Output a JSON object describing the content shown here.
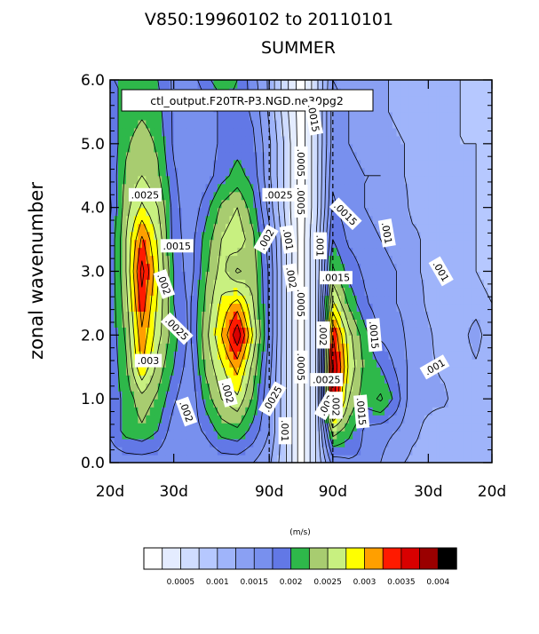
{
  "title": "V850:19960102 to 20110101",
  "subtitle": "SUMMER",
  "case_label": "ctl_output.F20TR-P3.NGD.ne30pg2",
  "units": "(m/s)",
  "chart_data": {
    "type": "heatmap",
    "title": "V850:19960102 to 20110101",
    "subtitle": "SUMMER",
    "ylabel": "zonal wavenumber",
    "xlabel": "",
    "ylim": [
      0,
      6
    ],
    "y_ticks": [
      "0.0",
      "1.0",
      "2.0",
      "3.0",
      "4.0",
      "5.0",
      "6.0"
    ],
    "x_tick_labels": [
      "20d",
      "30d",
      "90d",
      "90d",
      "30d",
      "20d"
    ],
    "x": [
      -6,
      -5.5,
      -5,
      -4.5,
      -4,
      -3.5,
      -3,
      -2.5,
      -2,
      -1.5,
      -1,
      -0.5,
      0,
      0.5,
      1,
      1.5,
      2,
      2.5,
      3,
      3.5,
      4,
      4.5,
      5,
      5.5,
      6
    ],
    "y": [
      0,
      0.5,
      1,
      1.5,
      2,
      2.5,
      3,
      3.5,
      4,
      4.5,
      5,
      5.5,
      6
    ],
    "z": [
      [
        0.0016,
        0.0016,
        0.0016,
        0.0016,
        0.0015,
        0.0015,
        0.0015,
        0.0016,
        0.0016,
        0.0015,
        0.0013,
        0.0008,
        0.0001,
        0.0008,
        0.0016,
        0.0017,
        0.0017,
        0.0015,
        0.0013,
        0.0012,
        0.0012,
        0.0011,
        0.0011,
        0.0011,
        0.0011
      ],
      [
        0.0018,
        0.0021,
        0.0022,
        0.002,
        0.0016,
        0.0016,
        0.0018,
        0.0021,
        0.0022,
        0.0019,
        0.0015,
        0.0008,
        0.0001,
        0.0008,
        0.0024,
        0.0021,
        0.0017,
        0.0016,
        0.0015,
        0.0013,
        0.0012,
        0.0011,
        0.0011,
        0.001,
        0.001
      ],
      [
        0.0018,
        0.0021,
        0.0024,
        0.0022,
        0.0018,
        0.0015,
        0.0021,
        0.0025,
        0.0027,
        0.0022,
        0.0015,
        0.0008,
        0.0001,
        0.0008,
        0.0036,
        0.0025,
        0.0021,
        0.0023,
        0.0019,
        0.0013,
        0.0013,
        0.0013,
        0.0011,
        0.001,
        0.001
      ],
      [
        0.0018,
        0.0022,
        0.003,
        0.0024,
        0.002,
        0.0016,
        0.0023,
        0.0027,
        0.0031,
        0.0024,
        0.0016,
        0.0008,
        0.0001,
        0.0008,
        0.0038,
        0.0027,
        0.0022,
        0.002,
        0.0017,
        0.0014,
        0.0013,
        0.0012,
        0.0011,
        0.0012,
        0.001
      ],
      [
        0.0018,
        0.0023,
        0.0032,
        0.0026,
        0.0021,
        0.0017,
        0.0024,
        0.003,
        0.0037,
        0.0027,
        0.0017,
        0.0008,
        0.0001,
        0.0008,
        0.0035,
        0.0026,
        0.0021,
        0.0017,
        0.0016,
        0.0014,
        0.0013,
        0.0011,
        0.0011,
        0.0014,
        0.001
      ],
      [
        0.0018,
        0.0024,
        0.0034,
        0.0027,
        0.002,
        0.0017,
        0.0023,
        0.0028,
        0.0031,
        0.0025,
        0.0017,
        0.0008,
        0.0001,
        0.0008,
        0.0028,
        0.0022,
        0.0018,
        0.0016,
        0.0015,
        0.0014,
        0.0012,
        0.0011,
        0.0011,
        0.0011,
        0.001
      ],
      [
        0.0018,
        0.0025,
        0.0036,
        0.0028,
        0.002,
        0.0016,
        0.0022,
        0.0026,
        0.0022,
        0.0024,
        0.0017,
        0.0008,
        0.0001,
        0.0008,
        0.0023,
        0.0019,
        0.0017,
        0.0016,
        0.0015,
        0.0013,
        0.0012,
        0.0011,
        0.001,
        0.001,
        0.0009
      ],
      [
        0.0018,
        0.0025,
        0.0033,
        0.0027,
        0.0019,
        0.0016,
        0.0021,
        0.0025,
        0.0027,
        0.0023,
        0.0016,
        0.0008,
        0.0001,
        0.0008,
        0.002,
        0.0017,
        0.0016,
        0.0015,
        0.0014,
        0.0013,
        0.0012,
        0.0011,
        0.001,
        0.001,
        0.0009
      ],
      [
        0.0017,
        0.0024,
        0.0028,
        0.0025,
        0.0019,
        0.0015,
        0.0019,
        0.0023,
        0.0025,
        0.0021,
        0.0014,
        0.0007,
        0.0001,
        0.0007,
        0.0018,
        0.0016,
        0.0015,
        0.0014,
        0.0014,
        0.0012,
        0.0012,
        0.0012,
        0.001,
        0.001,
        0.0009
      ],
      [
        0.0018,
        0.0023,
        0.0025,
        0.0023,
        0.0018,
        0.0015,
        0.0016,
        0.0019,
        0.0021,
        0.0019,
        0.0013,
        0.0007,
        0.0001,
        0.0007,
        0.0017,
        0.0016,
        0.0015,
        0.0015,
        0.0013,
        0.0012,
        0.0011,
        0.001,
        0.001,
        0.001,
        0.0009
      ],
      [
        0.0018,
        0.0022,
        0.0024,
        0.0022,
        0.0017,
        0.0015,
        0.0016,
        0.0018,
        0.0019,
        0.0018,
        0.0013,
        0.0007,
        0.0001,
        0.0007,
        0.0016,
        0.0015,
        0.0014,
        0.0014,
        0.0013,
        0.0012,
        0.0011,
        0.0011,
        0.001,
        0.001,
        0.0009
      ],
      [
        0.0019,
        0.0021,
        0.0022,
        0.0021,
        0.0017,
        0.0015,
        0.0016,
        0.0018,
        0.0019,
        0.0017,
        0.0012,
        0.0006,
        0.0001,
        0.0007,
        0.0016,
        0.0015,
        0.0014,
        0.0013,
        0.0012,
        0.0011,
        0.0011,
        0.001,
        0.001,
        0.0009,
        0.0009
      ],
      [
        0.002,
        0.002,
        0.0021,
        0.002,
        0.0017,
        0.0016,
        0.0019,
        0.0022,
        0.002,
        0.0016,
        0.0012,
        0.0006,
        0.0001,
        0.0007,
        0.0015,
        0.0014,
        0.0013,
        0.0013,
        0.0012,
        0.0011,
        0.0011,
        0.001,
        0.001,
        0.0009,
        0.0009
      ]
    ],
    "contour_line_labels": [
      ".0025",
      ".0015",
      ".002",
      ".0025",
      ".003",
      ".002",
      ".002",
      ".0025",
      ".002",
      ".001",
      ".002",
      ".0025",
      ".0005",
      ".0005",
      ".0005",
      ".0005",
      ".001",
      ".001",
      ".0015",
      ".0015",
      ".0015",
      ".002",
      ".0025",
      ".003",
      ".0015",
      ".002",
      ".001",
      ".001",
      ".001",
      ".0015"
    ],
    "levels": [
      0.00025,
      0.0005,
      0.00075,
      0.001,
      0.00125,
      0.0015,
      0.00175,
      0.002,
      0.00225,
      0.0025,
      0.00275,
      0.003,
      0.00325,
      0.0035,
      0.00375,
      0.004
    ],
    "colors": [
      "#ffffff",
      "#e4ecff",
      "#cfdcff",
      "#b6c8ff",
      "#9fb4fa",
      "#8aa0f3",
      "#7890ee",
      "#6278e6",
      "#2eb84a",
      "#a8cc70",
      "#c8f080",
      "#ffff00",
      "#ff9f00",
      "#ff1a00",
      "#d80000",
      "#9a0000",
      "#000000"
    ],
    "colorbar_labels": [
      "0.0005",
      "0.001",
      "0.0015",
      "0.002",
      "0.0025",
      "0.003",
      "0.0035",
      "0.004"
    ],
    "dashed_x": [
      -1,
      1
    ]
  }
}
